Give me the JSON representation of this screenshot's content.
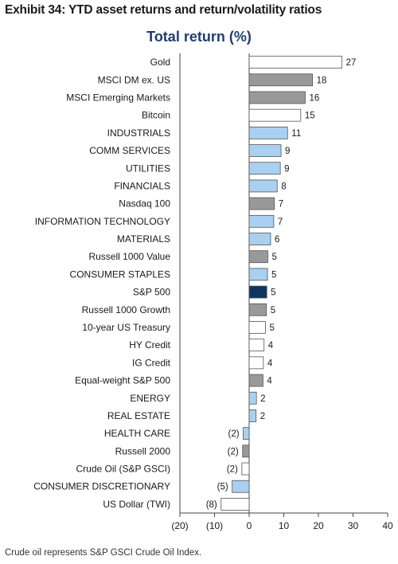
{
  "header": {
    "exhibit_title": "Exhibit 34: YTD asset returns and return/volatility ratios",
    "footnote": "Crude oil represents S&P GSCI Crude Oil Index."
  },
  "colors": {
    "light_blue": "#a9d0f0",
    "gray": "#999999",
    "white": "#ffffff",
    "navy": "#0f3460",
    "bar_stroke": "#555555",
    "axis": "#444444"
  },
  "chart_data": {
    "type": "bar",
    "orientation": "horizontal",
    "title": "Total return (%)",
    "xlabel": "",
    "ylabel": "",
    "xlim": [
      -20,
      40
    ],
    "xticks": [
      -20,
      -10,
      0,
      10,
      20,
      30,
      40
    ],
    "xtick_labels": [
      "(20)",
      "(10)",
      "0",
      "10",
      "20",
      "30",
      "40"
    ],
    "grid": false,
    "categories": [
      "Gold",
      "MSCI DM ex. US",
      "MSCI Emerging Markets",
      "Bitcoin",
      "INDUSTRIALS",
      "COMM SERVICES",
      "UTILITIES",
      "FINANCIALS",
      "Nasdaq 100",
      "INFORMATION TECHNOLOGY",
      "MATERIALS",
      "Russell 1000 Value",
      "CONSUMER STAPLES",
      "S&P 500",
      "Russell 1000 Growth",
      "10-year US Treasury",
      "HY Credit",
      "IG Credit",
      "Equal-weight S&P 500",
      "ENERGY",
      "REAL ESTATE",
      "HEALTH CARE",
      "Russell 2000",
      "Crude Oil (S&P GSCI)",
      "CONSUMER DISCRETIONARY",
      "US Dollar (TWI)"
    ],
    "values": [
      26.8,
      18.3,
      16.2,
      14.9,
      11.1,
      9.2,
      9.0,
      8.1,
      7.3,
      7.1,
      6.2,
      5.4,
      5.3,
      5.1,
      5.0,
      4.7,
      4.3,
      4.1,
      4.0,
      2.1,
      2.0,
      -1.7,
      -1.9,
      -2.1,
      -4.9,
      -8.1
    ],
    "value_labels": [
      "27",
      "18",
      "16",
      "15",
      "11",
      "9",
      "9",
      "8",
      "7",
      "7",
      "6",
      "5",
      "5",
      "5",
      "5",
      "5",
      "4",
      "4",
      "4",
      "2",
      "2",
      "(2)",
      "(2)",
      "(2)",
      "(5)",
      "(8)"
    ],
    "bar_colors": [
      "white",
      "gray",
      "gray",
      "white",
      "light_blue",
      "light_blue",
      "light_blue",
      "light_blue",
      "gray",
      "light_blue",
      "light_blue",
      "gray",
      "light_blue",
      "navy",
      "gray",
      "white",
      "white",
      "white",
      "gray",
      "light_blue",
      "light_blue",
      "light_blue",
      "gray",
      "white",
      "light_blue",
      "white"
    ]
  }
}
